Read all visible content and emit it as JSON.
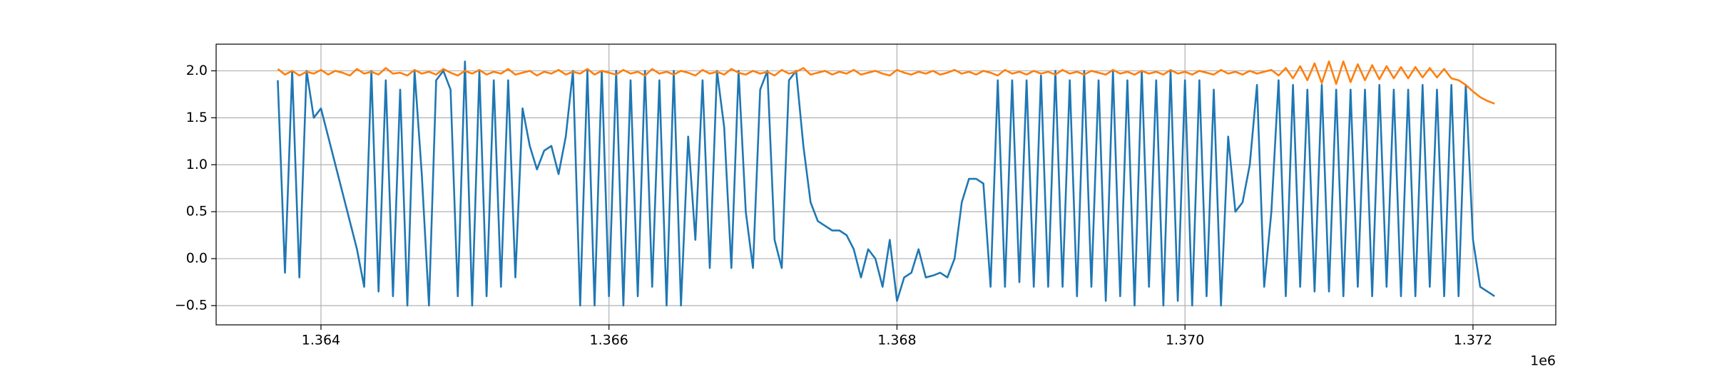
{
  "chart_data": {
    "type": "line",
    "x": [
      1363700,
      1363750,
      1363800,
      1363850,
      1363900,
      1363950,
      1364000,
      1364050,
      1364100,
      1364150,
      1364200,
      1364250,
      1364300,
      1364350,
      1364400,
      1364450,
      1364500,
      1364550,
      1364600,
      1364650,
      1364700,
      1364750,
      1364800,
      1364850,
      1364900,
      1364950,
      1365000,
      1365050,
      1365100,
      1365150,
      1365200,
      1365250,
      1365300,
      1365350,
      1365400,
      1365450,
      1365500,
      1365550,
      1365600,
      1365650,
      1365700,
      1365750,
      1365800,
      1365850,
      1365900,
      1365950,
      1366000,
      1366050,
      1366100,
      1366150,
      1366200,
      1366250,
      1366300,
      1366350,
      1366400,
      1366450,
      1366500,
      1366550,
      1366600,
      1366650,
      1366700,
      1366750,
      1366800,
      1366850,
      1366900,
      1366950,
      1367000,
      1367050,
      1367100,
      1367150,
      1367200,
      1367250,
      1367300,
      1367350,
      1367400,
      1367450,
      1367500,
      1367550,
      1367600,
      1367650,
      1367700,
      1367750,
      1367800,
      1367850,
      1367900,
      1367950,
      1368000,
      1368050,
      1368100,
      1368150,
      1368200,
      1368250,
      1368300,
      1368350,
      1368400,
      1368450,
      1368500,
      1368550,
      1368600,
      1368650,
      1368700,
      1368750,
      1368800,
      1368850,
      1368900,
      1368950,
      1369000,
      1369050,
      1369100,
      1369150,
      1369200,
      1369250,
      1369300,
      1369350,
      1369400,
      1369450,
      1369500,
      1369550,
      1369600,
      1369650,
      1369700,
      1369750,
      1369800,
      1369850,
      1369900,
      1369950,
      1370000,
      1370050,
      1370100,
      1370150,
      1370200,
      1370250,
      1370300,
      1370350,
      1370400,
      1370450,
      1370500,
      1370550,
      1370600,
      1370650,
      1370700,
      1370750,
      1370800,
      1370850,
      1370900,
      1370950,
      1371000,
      1371050,
      1371100,
      1371150,
      1371200,
      1371250,
      1371300,
      1371350,
      1371400,
      1371450,
      1371500,
      1371550,
      1371600,
      1371650,
      1371700,
      1371750,
      1371800,
      1371850,
      1371900,
      1371950,
      1372000,
      1372050,
      1372100,
      1372150
    ],
    "series": [
      {
        "color": "#1f77b4",
        "values": [
          1.9,
          -0.15,
          2.0,
          -0.2,
          2.0,
          1.5,
          1.6,
          1.3,
          1.0,
          0.7,
          0.4,
          0.1,
          -0.3,
          2.0,
          -0.35,
          1.9,
          -0.4,
          1.8,
          -0.5,
          2.0,
          0.9,
          -0.5,
          1.9,
          2.0,
          1.8,
          -0.4,
          2.1,
          -0.5,
          2.0,
          -0.4,
          1.9,
          -0.3,
          1.9,
          -0.2,
          1.6,
          1.2,
          0.95,
          1.15,
          1.2,
          0.9,
          1.3,
          2.0,
          -0.5,
          2.0,
          -0.5,
          2.0,
          -0.4,
          2.0,
          -0.5,
          1.9,
          -0.4,
          2.0,
          -0.3,
          1.9,
          -0.5,
          2.0,
          -0.5,
          1.3,
          0.2,
          1.9,
          -0.1,
          2.0,
          1.4,
          -0.1,
          2.0,
          0.5,
          -0.1,
          1.8,
          2.0,
          0.2,
          -0.1,
          1.9,
          2.0,
          1.2,
          0.6,
          0.4,
          0.35,
          0.3,
          0.3,
          0.25,
          0.1,
          -0.2,
          0.1,
          0.0,
          -0.3,
          0.2,
          -0.45,
          -0.2,
          -0.15,
          0.1,
          -0.2,
          -0.18,
          -0.15,
          -0.2,
          0.0,
          0.6,
          0.85,
          0.85,
          0.8,
          -0.3,
          1.9,
          -0.3,
          1.9,
          -0.25,
          1.9,
          -0.3,
          1.95,
          -0.3,
          2.0,
          -0.3,
          1.9,
          -0.4,
          2.0,
          -0.3,
          1.9,
          -0.45,
          2.0,
          -0.4,
          1.9,
          -0.5,
          2.0,
          -0.3,
          1.9,
          -0.5,
          2.0,
          -0.45,
          1.9,
          -0.5,
          1.9,
          -0.4,
          1.8,
          -0.5,
          1.3,
          0.5,
          0.6,
          1.0,
          1.85,
          -0.3,
          0.5,
          1.9,
          -0.4,
          1.85,
          -0.3,
          1.8,
          -0.35,
          1.85,
          -0.35,
          1.8,
          -0.4,
          1.8,
          -0.3,
          1.8,
          -0.4,
          1.85,
          -0.3,
          1.8,
          -0.4,
          1.8,
          -0.4,
          1.85,
          -0.3,
          1.8,
          -0.4,
          1.85,
          -0.4,
          1.85,
          0.2,
          -0.3,
          -0.35,
          -0.4
        ]
      },
      {
        "color": "#ff7f0e",
        "values": [
          2.02,
          1.96,
          2.0,
          1.95,
          1.99,
          1.97,
          2.01,
          1.96,
          2.0,
          1.98,
          1.95,
          2.02,
          1.97,
          1.99,
          1.96,
          2.03,
          1.97,
          1.98,
          1.95,
          2.01,
          1.97,
          1.99,
          1.96,
          2.02,
          1.98,
          1.95,
          2.0,
          1.97,
          2.01,
          1.96,
          1.99,
          1.97,
          2.02,
          1.96,
          1.98,
          2.0,
          1.95,
          1.99,
          1.97,
          2.01,
          1.96,
          1.99,
          1.97,
          2.02,
          1.96,
          2.0,
          1.98,
          1.96,
          2.01,
          1.97,
          1.99,
          1.95,
          2.02,
          1.97,
          1.99,
          1.96,
          2.0,
          1.98,
          1.95,
          2.01,
          1.97,
          1.99,
          1.96,
          2.02,
          1.98,
          1.96,
          2.0,
          1.97,
          1.99,
          1.95,
          2.01,
          1.97,
          1.99,
          2.03,
          1.96,
          1.98,
          2.0,
          1.96,
          1.99,
          1.97,
          2.01,
          1.96,
          1.98,
          2.0,
          1.97,
          1.95,
          2.01,
          1.98,
          1.96,
          1.99,
          1.97,
          2.0,
          1.96,
          1.98,
          2.01,
          1.97,
          1.99,
          1.96,
          2.0,
          1.98,
          1.95,
          2.01,
          1.97,
          1.99,
          1.96,
          2.0,
          1.97,
          1.99,
          1.96,
          2.01,
          1.97,
          1.99,
          1.96,
          2.0,
          1.98,
          1.96,
          2.01,
          1.97,
          1.99,
          1.96,
          2.0,
          1.97,
          1.99,
          1.96,
          2.01,
          1.97,
          1.99,
          1.96,
          2.0,
          1.98,
          1.96,
          2.01,
          1.97,
          1.99,
          1.96,
          2.0,
          1.97,
          1.99,
          2.01,
          1.95,
          2.03,
          1.92,
          2.05,
          1.9,
          2.08,
          1.87,
          2.1,
          1.86,
          2.1,
          1.88,
          2.07,
          1.9,
          2.06,
          1.91,
          2.05,
          1.92,
          2.04,
          1.92,
          2.04,
          1.93,
          2.03,
          1.93,
          2.02,
          1.92,
          1.9,
          1.85,
          1.78,
          1.72,
          1.68,
          1.65
        ]
      }
    ],
    "xlim": [
      1363272,
      1372575
    ],
    "ylim": [
      -0.705,
      2.284
    ],
    "xticks": [
      {
        "value": 1364000,
        "label": "1.364"
      },
      {
        "value": 1366000,
        "label": "1.366"
      },
      {
        "value": 1368000,
        "label": "1.368"
      },
      {
        "value": 1370000,
        "label": "1.370"
      },
      {
        "value": 1372000,
        "label": "1.372"
      }
    ],
    "yticks": [
      {
        "value": -0.5,
        "label": "−0.5"
      },
      {
        "value": 0,
        "label": "0.0"
      },
      0.5,
      {
        "value": 1,
        "label": "1.0"
      },
      1.5,
      {
        "value": 2,
        "label": "2.0"
      }
    ],
    "x_offset_label": "1e6",
    "grid": true
  }
}
